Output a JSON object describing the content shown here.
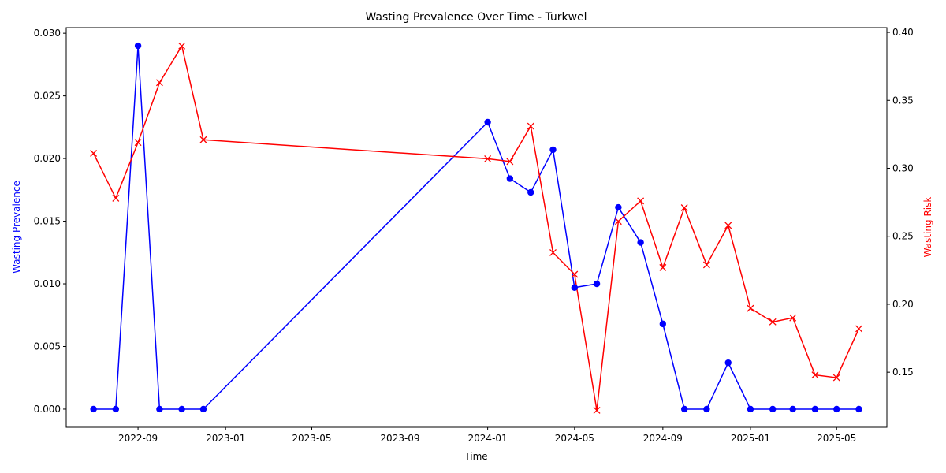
{
  "chart_data": {
    "type": "line",
    "title": "Wasting Prevalence Over Time - Turkwel",
    "xlabel": "Time",
    "ylabel_left": "Wasting Prevalence",
    "ylabel_right": "Wasting Risk",
    "xlim": [
      "2022-05-24",
      "2025-07-10"
    ],
    "ylim_left": [
      -0.00145,
      0.03045
    ],
    "ylim_right": [
      0.1095,
      0.4035
    ],
    "x_ticks": [
      "2022-09",
      "2023-01",
      "2023-05",
      "2023-09",
      "2024-01",
      "2024-05",
      "2024-09",
      "2025-01",
      "2025-05"
    ],
    "y_ticks_left": [
      "0.000",
      "0.005",
      "0.010",
      "0.015",
      "0.020",
      "0.025",
      "0.030"
    ],
    "y_ticks_right": [
      "0.15",
      "0.20",
      "0.25",
      "0.30",
      "0.35",
      "0.40"
    ],
    "grid": false,
    "series": [
      {
        "name": "",
        "axis": "left",
        "color": "#0000ff",
        "marker": "circle",
        "x": [
          "2022-07-01",
          "2022-08-01",
          "2022-09-01",
          "2022-10-01",
          "2022-11-01",
          "2022-12-01",
          "2024-01-01",
          "2024-02-01",
          "2024-03-01",
          "2024-04-01",
          "2024-05-01",
          "2024-06-01",
          "2024-07-01",
          "2024-08-01",
          "2024-09-01",
          "2024-10-01",
          "2024-11-01",
          "2024-12-01",
          "2025-01-01",
          "2025-02-01",
          "2025-03-01",
          "2025-04-01",
          "2025-05-01",
          "2025-06-01"
        ],
        "values": [
          0.0,
          0.0,
          0.029,
          0.0,
          0.0,
          0.0,
          0.0229,
          0.0184,
          0.0173,
          0.0207,
          0.0097,
          0.01,
          0.0161,
          0.0133,
          0.0068,
          0.0,
          0.0,
          0.0037,
          0.0,
          0.0,
          0.0,
          0.0,
          0.0,
          0.0
        ]
      },
      {
        "name": "",
        "axis": "right",
        "color": "#ff0000",
        "marker": "x",
        "x": [
          "2022-07-01",
          "2022-08-01",
          "2022-09-01",
          "2022-10-01",
          "2022-11-01",
          "2022-12-01",
          "2024-01-01",
          "2024-02-01",
          "2024-03-01",
          "2024-04-01",
          "2024-05-01",
          "2024-06-01",
          "2024-07-01",
          "2024-08-01",
          "2024-09-01",
          "2024-10-01",
          "2024-11-01",
          "2024-12-01",
          "2025-01-01",
          "2025-02-01",
          "2025-03-01",
          "2025-04-01",
          "2025-05-01",
          "2025-06-01"
        ],
        "values": [
          0.311,
          0.278,
          0.319,
          0.363,
          0.39,
          0.321,
          0.307,
          0.305,
          0.331,
          0.238,
          0.222,
          0.122,
          0.261,
          0.276,
          0.227,
          0.271,
          0.229,
          0.258,
          0.197,
          0.187,
          0.19,
          0.148,
          0.146,
          0.182
        ]
      }
    ]
  }
}
